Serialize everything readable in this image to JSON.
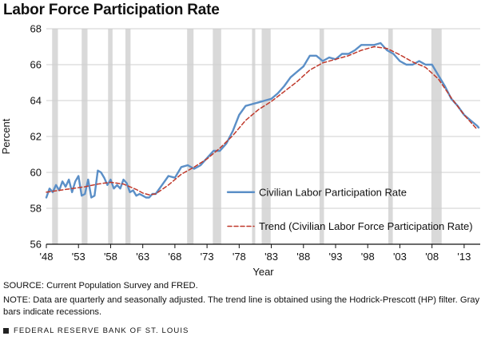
{
  "title": "Labor Force Participation Rate",
  "notes": {
    "source": "SOURCE: Current Population Survey and FRED.",
    "note": "NOTE: Data are quarterly and seasonally adjusted. The trend line is obtained using the Hodrick-Prescott (HP) filter. Gray bars indicate recessions."
  },
  "footer": {
    "publisher": "FEDERAL RESERVE BANK OF ST. LOUIS"
  },
  "colors": {
    "series": "#5b8fc7",
    "trend": "#c0392b",
    "recession": "#d9d9d9"
  },
  "chart_data": {
    "type": "line",
    "title": "Labor Force Participation Rate",
    "xlabel": "Year",
    "ylabel": "Percent",
    "xlim": [
      1948,
      2015.5
    ],
    "ylim": [
      56,
      68
    ],
    "yticks": [
      56,
      58,
      60,
      62,
      64,
      66,
      68
    ],
    "xticks": [
      1948,
      1953,
      1958,
      1963,
      1968,
      1973,
      1978,
      1983,
      1988,
      1993,
      1998,
      2003,
      2008,
      2013
    ],
    "xtick_labels": [
      "'48",
      "'53",
      "'58",
      "'63",
      "'68",
      "'73",
      "'78",
      "'83",
      "'88",
      "'93",
      "'98",
      "'03",
      "'08",
      "'13"
    ],
    "legend_position": "right",
    "grid": "horizontal",
    "recessions": [
      [
        1948.9,
        1949.8
      ],
      [
        1953.5,
        1954.4
      ],
      [
        1957.6,
        1958.3
      ],
      [
        1960.3,
        1961.1
      ],
      [
        1969.9,
        1970.9
      ],
      [
        1973.9,
        1975.2
      ],
      [
        1980.0,
        1980.5
      ],
      [
        1981.5,
        1982.9
      ],
      [
        1990.5,
        1991.2
      ],
      [
        2001.2,
        2001.9
      ],
      [
        2007.9,
        2009.5
      ]
    ],
    "series": [
      {
        "name": "Civilian Labor Participation Rate",
        "style": "solid",
        "x": [
          1948.0,
          1948.5,
          1949.0,
          1949.5,
          1950.0,
          1950.5,
          1951.0,
          1951.5,
          1952.0,
          1952.5,
          1953.0,
          1953.5,
          1954.0,
          1954.5,
          1955.0,
          1955.5,
          1956.0,
          1956.5,
          1957.0,
          1957.5,
          1958.0,
          1958.5,
          1959.0,
          1959.5,
          1960.0,
          1960.5,
          1961.0,
          1961.5,
          1962.0,
          1962.5,
          1963.0,
          1963.5,
          1964.0,
          1964.5,
          1965.0,
          1966.0,
          1967.0,
          1968.0,
          1969.0,
          1970.0,
          1971.0,
          1972.0,
          1973.0,
          1974.0,
          1975.0,
          1976.0,
          1977.0,
          1978.0,
          1979.0,
          1980.0,
          1981.0,
          1982.0,
          1983.0,
          1984.0,
          1985.0,
          1986.0,
          1987.0,
          1988.0,
          1989.0,
          1990.0,
          1991.0,
          1992.0,
          1993.0,
          1994.0,
          1995.0,
          1996.0,
          1997.0,
          1998.0,
          1999.0,
          2000.0,
          2001.0,
          2002.0,
          2003.0,
          2004.0,
          2005.0,
          2006.0,
          2007.0,
          2008.0,
          2009.0,
          2010.0,
          2011.0,
          2012.0,
          2013.0,
          2014.0,
          2015.0,
          2015.25
        ],
        "values": [
          58.6,
          59.1,
          58.9,
          59.3,
          59.0,
          59.5,
          59.2,
          59.6,
          58.9,
          59.5,
          59.8,
          58.7,
          58.8,
          59.6,
          58.6,
          58.7,
          60.1,
          60.0,
          59.7,
          59.3,
          59.6,
          59.1,
          59.3,
          59.1,
          59.6,
          59.4,
          58.9,
          59.0,
          58.7,
          58.8,
          58.7,
          58.6,
          58.6,
          58.8,
          58.8,
          59.3,
          59.8,
          59.7,
          60.3,
          60.4,
          60.2,
          60.4,
          60.8,
          61.2,
          61.2,
          61.6,
          62.3,
          63.2,
          63.7,
          63.8,
          63.9,
          64.0,
          64.1,
          64.4,
          64.8,
          65.3,
          65.6,
          65.9,
          66.5,
          66.5,
          66.2,
          66.4,
          66.3,
          66.6,
          66.6,
          66.8,
          67.1,
          67.1,
          67.1,
          67.2,
          66.8,
          66.6,
          66.2,
          66.0,
          66.0,
          66.2,
          66.0,
          66.0,
          65.4,
          64.8,
          64.1,
          63.7,
          63.2,
          62.9,
          62.6,
          62.5
        ]
      },
      {
        "name": "Trend (Civilian Labor Force Participation Rate)",
        "style": "dashed",
        "x": [
          1948,
          1950,
          1952,
          1954,
          1956,
          1958,
          1960,
          1962,
          1963,
          1964,
          1965,
          1967,
          1969,
          1971,
          1973,
          1975,
          1977,
          1979,
          1981,
          1983,
          1985,
          1987,
          1989,
          1991,
          1993,
          1995,
          1997,
          1999,
          2001,
          2003,
          2005,
          2007,
          2009,
          2011,
          2013,
          2015
        ],
        "values": [
          58.9,
          59.0,
          59.1,
          59.2,
          59.35,
          59.45,
          59.35,
          59.05,
          58.85,
          58.75,
          58.8,
          59.3,
          59.9,
          60.3,
          60.75,
          61.35,
          62.05,
          62.9,
          63.5,
          63.95,
          64.5,
          65.05,
          65.7,
          66.1,
          66.3,
          66.5,
          66.8,
          67.0,
          66.9,
          66.55,
          66.15,
          65.85,
          65.2,
          64.15,
          63.2,
          62.4
        ]
      }
    ]
  }
}
